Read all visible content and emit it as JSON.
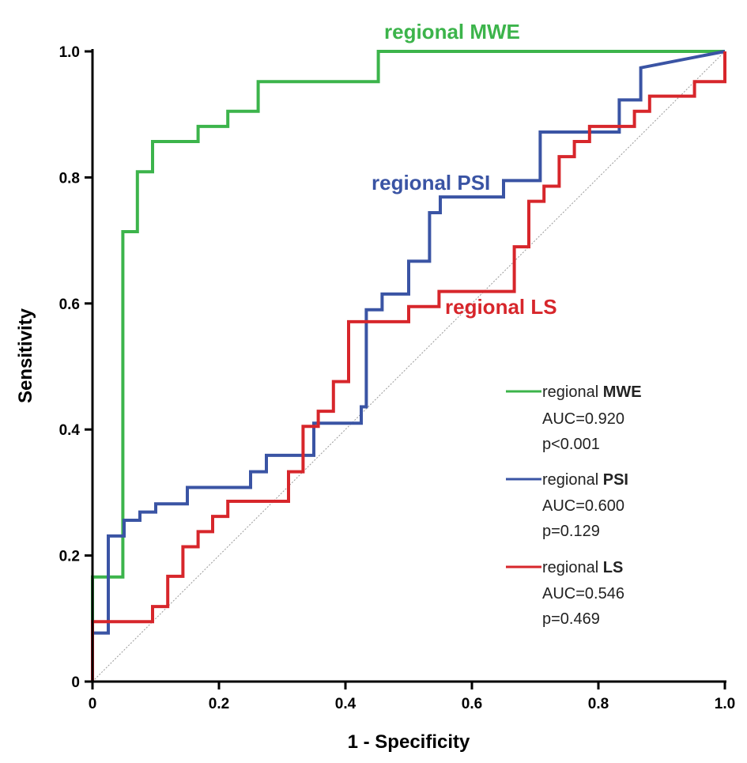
{
  "chart_data": {
    "type": "line",
    "xlabel": "1 - Specificity",
    "ylabel": "Sensitivity",
    "xlim": [
      0,
      1
    ],
    "ylim": [
      0,
      1
    ],
    "xticks": [
      "0",
      "0.2",
      "0.4",
      "0.6",
      "0.8",
      "1.0"
    ],
    "yticks": [
      "0",
      "0.2",
      "0.4",
      "0.6",
      "0.8",
      "1.0"
    ],
    "reference_line": "diagonal",
    "series": [
      {
        "name": "regional MWE",
        "prefix": "regional",
        "key": "MWE",
        "color": "#3cb44b",
        "auc": "AUC=0.920",
        "p": "p<0.001",
        "points": [
          [
            0,
            0
          ],
          [
            0,
            0.166
          ],
          [
            0.048,
            0.166
          ],
          [
            0.048,
            0.714
          ],
          [
            0.071,
            0.714
          ],
          [
            0.071,
            0.809
          ],
          [
            0.095,
            0.809
          ],
          [
            0.095,
            0.857
          ],
          [
            0.167,
            0.857
          ],
          [
            0.167,
            0.881
          ],
          [
            0.214,
            0.881
          ],
          [
            0.214,
            0.905
          ],
          [
            0.262,
            0.905
          ],
          [
            0.262,
            0.952
          ],
          [
            0.452,
            0.952
          ],
          [
            0.452,
            1.0
          ],
          [
            1.0,
            1.0
          ]
        ]
      },
      {
        "name": "regional PSI",
        "prefix": "regional",
        "key": "PSI",
        "color": "#3a54a4",
        "auc": "AUC=0.600",
        "p": "p=0.129",
        "points": [
          [
            0,
            0
          ],
          [
            0,
            0.077
          ],
          [
            0.025,
            0.077
          ],
          [
            0.025,
            0.231
          ],
          [
            0.05,
            0.231
          ],
          [
            0.05,
            0.256
          ],
          [
            0.075,
            0.256
          ],
          [
            0.075,
            0.269
          ],
          [
            0.1,
            0.269
          ],
          [
            0.1,
            0.282
          ],
          [
            0.15,
            0.282
          ],
          [
            0.15,
            0.308
          ],
          [
            0.25,
            0.308
          ],
          [
            0.25,
            0.333
          ],
          [
            0.275,
            0.333
          ],
          [
            0.275,
            0.359
          ],
          [
            0.35,
            0.359
          ],
          [
            0.35,
            0.41
          ],
          [
            0.425,
            0.41
          ],
          [
            0.425,
            0.436
          ],
          [
            0.433,
            0.436
          ],
          [
            0.433,
            0.59
          ],
          [
            0.458,
            0.59
          ],
          [
            0.458,
            0.615
          ],
          [
            0.5,
            0.615
          ],
          [
            0.5,
            0.667
          ],
          [
            0.533,
            0.667
          ],
          [
            0.533,
            0.744
          ],
          [
            0.55,
            0.744
          ],
          [
            0.55,
            0.769
          ],
          [
            0.65,
            0.769
          ],
          [
            0.65,
            0.795
          ],
          [
            0.708,
            0.795
          ],
          [
            0.708,
            0.872
          ],
          [
            0.833,
            0.872
          ],
          [
            0.833,
            0.923
          ],
          [
            0.867,
            0.923
          ],
          [
            0.867,
            0.974
          ],
          [
            1.0,
            1.0
          ]
        ]
      },
      {
        "name": "regional LS",
        "prefix": "regional",
        "key": "LS",
        "color": "#d7262b",
        "auc": "AUC=0.546",
        "p": "p=0.469",
        "points": [
          [
            0,
            0
          ],
          [
            0,
            0.095
          ],
          [
            0.095,
            0.095
          ],
          [
            0.095,
            0.119
          ],
          [
            0.119,
            0.119
          ],
          [
            0.119,
            0.167
          ],
          [
            0.143,
            0.167
          ],
          [
            0.143,
            0.214
          ],
          [
            0.167,
            0.214
          ],
          [
            0.167,
            0.238
          ],
          [
            0.19,
            0.238
          ],
          [
            0.19,
            0.262
          ],
          [
            0.214,
            0.262
          ],
          [
            0.214,
            0.286
          ],
          [
            0.31,
            0.286
          ],
          [
            0.31,
            0.333
          ],
          [
            0.333,
            0.333
          ],
          [
            0.333,
            0.405
          ],
          [
            0.357,
            0.405
          ],
          [
            0.357,
            0.429
          ],
          [
            0.381,
            0.429
          ],
          [
            0.381,
            0.476
          ],
          [
            0.405,
            0.476
          ],
          [
            0.405,
            0.571
          ],
          [
            0.5,
            0.571
          ],
          [
            0.5,
            0.595
          ],
          [
            0.548,
            0.595
          ],
          [
            0.548,
            0.619
          ],
          [
            0.667,
            0.619
          ],
          [
            0.667,
            0.69
          ],
          [
            0.69,
            0.69
          ],
          [
            0.69,
            0.762
          ],
          [
            0.714,
            0.762
          ],
          [
            0.714,
            0.786
          ],
          [
            0.738,
            0.786
          ],
          [
            0.738,
            0.833
          ],
          [
            0.762,
            0.833
          ],
          [
            0.762,
            0.857
          ],
          [
            0.786,
            0.857
          ],
          [
            0.786,
            0.881
          ],
          [
            0.857,
            0.881
          ],
          [
            0.857,
            0.905
          ],
          [
            0.881,
            0.905
          ],
          [
            0.881,
            0.929
          ],
          [
            0.952,
            0.929
          ],
          [
            0.952,
            0.952
          ],
          [
            1.0,
            0.952
          ],
          [
            1.0,
            1.0
          ]
        ]
      }
    ]
  }
}
